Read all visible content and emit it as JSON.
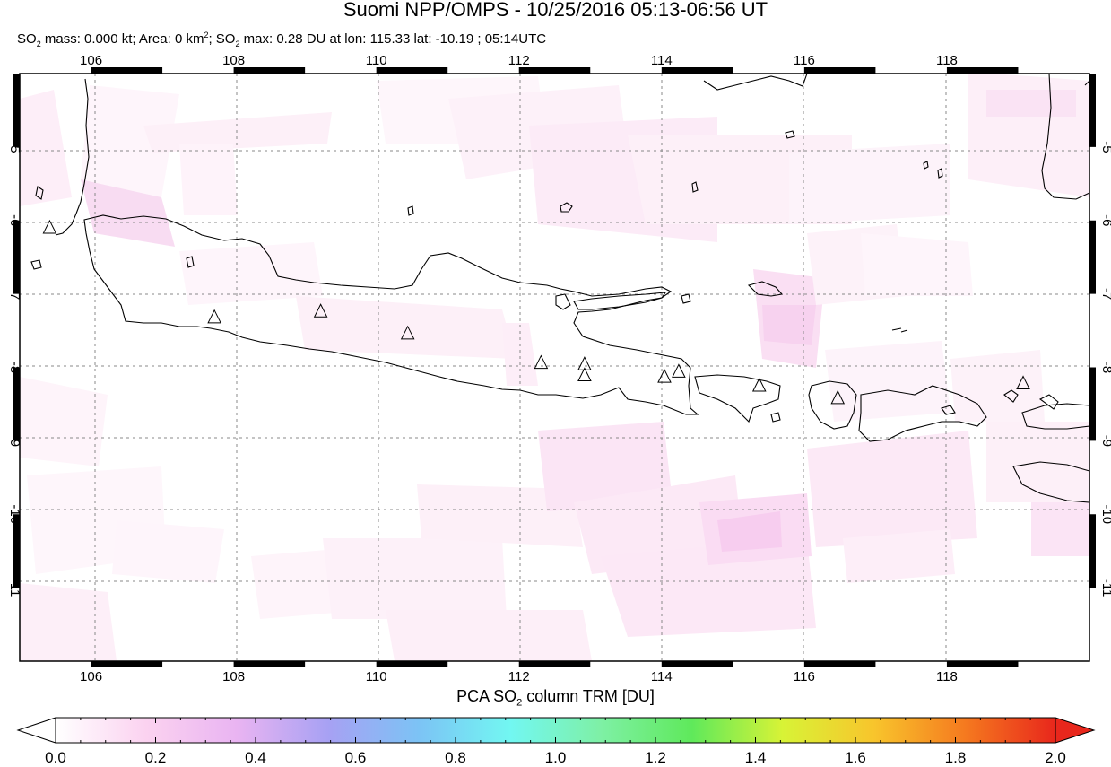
{
  "header": {
    "title": "Suomi NPP/OMPS - 10/25/2016 05:13-06:56 UT",
    "subtitle_parts": {
      "so2_label": "SO",
      "sub2": "2",
      "mass_text": " mass: 0.000 kt; Area: 0 km",
      "sup2": "2",
      "sep": "; SO",
      "max_text": " max: 0.28 DU at lon: 115.33 lat: -10.19 ; 05:14UTC"
    }
  },
  "map": {
    "lon_ticks": [
      "106",
      "108",
      "110",
      "112",
      "114",
      "116",
      "118"
    ],
    "lat_ticks": [
      "-5",
      "-6",
      "-7",
      "-8",
      "-9",
      "-10",
      "-11"
    ],
    "lon_range": [
      105.0,
      120.0
    ],
    "lat_range": [
      -12.0,
      -4.0
    ],
    "volcano_markers": [
      {
        "lon": 105.42,
        "lat": -6.1
      },
      {
        "lon": 107.73,
        "lat": -7.32
      },
      {
        "lon": 109.22,
        "lat": -7.24
      },
      {
        "lon": 110.44,
        "lat": -7.54
      },
      {
        "lon": 112.31,
        "lat": -7.94
      },
      {
        "lon": 112.92,
        "lat": -7.96
      },
      {
        "lon": 112.92,
        "lat": -8.11
      },
      {
        "lon": 114.04,
        "lat": -8.13
      },
      {
        "lon": 114.24,
        "lat": -8.06
      },
      {
        "lon": 115.37,
        "lat": -8.25
      },
      {
        "lon": 116.47,
        "lat": -8.42
      },
      {
        "lon": 119.07,
        "lat": -8.22
      }
    ]
  },
  "colorbar": {
    "title_prefix": "PCA SO",
    "title_sub": "2",
    "title_suffix": " column TRM [DU]",
    "labels": [
      "0.0",
      "0.2",
      "0.4",
      "0.6",
      "0.8",
      "1.0",
      "1.2",
      "1.4",
      "1.6",
      "1.8",
      "2.0"
    ],
    "range": [
      0.0,
      2.0
    ],
    "colors": [
      "#ffffff",
      "#fbd2f0",
      "#e9b4f2",
      "#a7a1f3",
      "#7cc3f5",
      "#72f7f2",
      "#7ef0a5",
      "#5fe95b",
      "#d8f336",
      "#f8c52c",
      "#f57a1f",
      "#e8271c"
    ]
  }
}
